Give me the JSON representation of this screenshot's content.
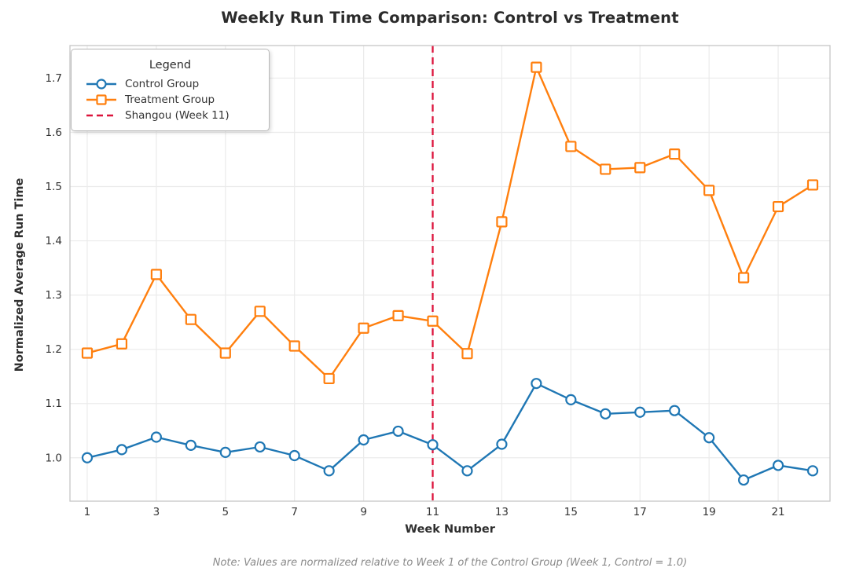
{
  "chart_data": {
    "type": "line",
    "title": "Weekly Run Time Comparison: Control vs Treatment",
    "xlabel": "Week Number",
    "ylabel": "Normalized Average Run Time",
    "note": "Note: Values are normalized relative to Week 1 of the Control Group (Week 1, Control = 1.0)",
    "x": [
      1,
      2,
      3,
      4,
      5,
      6,
      7,
      8,
      9,
      10,
      11,
      12,
      13,
      14,
      15,
      16,
      17,
      18,
      19,
      20,
      21,
      22
    ],
    "series": [
      {
        "name": "Control Group",
        "color": "#1f77b4",
        "marker": "circle",
        "values": [
          1.0,
          1.015,
          1.038,
          1.023,
          1.01,
          1.02,
          1.004,
          0.976,
          1.033,
          1.049,
          1.024,
          0.976,
          1.025,
          1.137,
          1.107,
          1.081,
          1.084,
          1.087,
          1.037,
          0.959,
          0.986,
          0.976
        ]
      },
      {
        "name": "Treatment Group",
        "color": "#ff7f0e",
        "marker": "square",
        "values": [
          1.193,
          1.21,
          1.338,
          1.255,
          1.193,
          1.27,
          1.206,
          1.146,
          1.239,
          1.262,
          1.252,
          1.192,
          1.435,
          1.72,
          1.574,
          1.532,
          1.535,
          1.56,
          1.493,
          1.332,
          1.463,
          1.503
        ]
      }
    ],
    "vline": {
      "x": 11,
      "label": "Shangou (Week 11)",
      "color": "#DC143C",
      "style": "dashed"
    },
    "legend": {
      "title": "Legend",
      "position": "upper left"
    },
    "xticks": [
      1,
      3,
      5,
      7,
      9,
      11,
      13,
      15,
      17,
      19,
      21
    ],
    "yticks": [
      1.0,
      1.1,
      1.2,
      1.3,
      1.4,
      1.5,
      1.6,
      1.7
    ],
    "xlim": [
      0.5,
      22.5
    ],
    "ylim": [
      0.92,
      1.76
    ],
    "grid": true,
    "legend_position": "upper left",
    "colors": {
      "grid": "#ebebeb",
      "spine": "#c5c5c5",
      "tick_text": "#333333",
      "title_text": "#2b2b2b",
      "note_text": "#8a8a8a"
    }
  }
}
